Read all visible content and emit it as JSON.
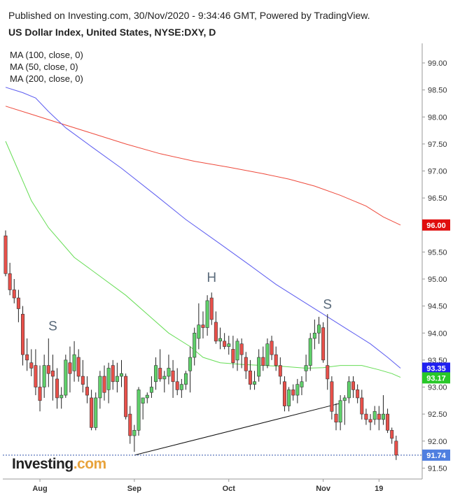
{
  "header": {
    "published": "Published on Investing.com, 30/Nov/2020 - 9:34:46 GMT, Powered by TradingView.",
    "symbol": "US Dollar Index, United States, NYSE:DXY, D"
  },
  "legend": [
    "MA (100, close, 0)",
    "MA (50, close, 0)",
    "MA (200, close, 0)"
  ],
  "logo": "Investing",
  "logo_suffix": ".com",
  "colors": {
    "up": "#26a69a",
    "up_fill": "#4caf50",
    "down": "#e0403c",
    "ma50": "#66dd55",
    "ma100": "#5b5bf0",
    "ma200": "#ee4a3c",
    "tag_red": "#e00d0d",
    "tag_blue": "#2020f0",
    "tag_green": "#28c828",
    "tag_last": "#4f7fe0"
  },
  "chart_data": {
    "type": "candlestick",
    "y_ticks": [
      "91.50",
      "92.00",
      "92.50",
      "93.00",
      "93.50",
      "94.00",
      "94.50",
      "95.00",
      "95.50",
      "96.00",
      "96.50",
      "97.00",
      "97.50",
      "98.00",
      "98.50",
      "99.00"
    ],
    "ylim": [
      91.25,
      99.25
    ],
    "x_labels": [
      {
        "label": "Aug",
        "index": 8
      },
      {
        "label": "Sep",
        "index": 30
      },
      {
        "label": "Oct",
        "index": 52
      },
      {
        "label": "Nov",
        "index": 74
      },
      {
        "label": "19",
        "index": 87
      }
    ],
    "price_tags": [
      {
        "label": "96.00",
        "value": 96.0,
        "color": "tag_red"
      },
      {
        "label": "93.35",
        "value": 93.35,
        "color": "tag_blue"
      },
      {
        "label": "93.17",
        "value": 93.17,
        "color": "tag_green"
      },
      {
        "label": "91.74",
        "value": 91.74,
        "color": "tag_last"
      }
    ],
    "annotations": [
      {
        "text": "S",
        "index": 11,
        "value": 94.05
      },
      {
        "text": "H",
        "index": 48,
        "value": 94.95
      },
      {
        "text": "S",
        "index": 75,
        "value": 94.45
      }
    ],
    "neckline": [
      {
        "index": 30,
        "value": 91.74
      },
      {
        "index": 78,
        "value": 92.7
      }
    ],
    "last_price": 91.74,
    "candles": [
      [
        95.8,
        95.9,
        95.05,
        95.1
      ],
      [
        95.1,
        95.3,
        94.7,
        94.8
      ],
      [
        94.8,
        95.0,
        94.55,
        94.65
      ],
      [
        94.65,
        94.8,
        94.2,
        94.45
      ],
      [
        94.35,
        94.5,
        93.4,
        93.6
      ],
      [
        93.6,
        93.9,
        93.3,
        93.5
      ],
      [
        93.45,
        93.7,
        93.2,
        93.35
      ],
      [
        93.4,
        93.7,
        92.85,
        93.0
      ],
      [
        93.0,
        93.4,
        92.55,
        92.75
      ],
      [
        93.0,
        93.6,
        92.8,
        93.4
      ],
      [
        93.4,
        93.9,
        93.0,
        93.25
      ],
      [
        93.3,
        93.6,
        92.75,
        93.2
      ],
      [
        93.15,
        93.35,
        92.6,
        92.8
      ],
      [
        92.8,
        93.0,
        92.6,
        92.85
      ],
      [
        92.85,
        93.6,
        92.8,
        93.5
      ],
      [
        93.45,
        93.75,
        92.9,
        93.25
      ],
      [
        93.3,
        93.85,
        93.1,
        93.6
      ],
      [
        93.55,
        93.7,
        93.1,
        93.2
      ],
      [
        93.2,
        93.5,
        92.9,
        93.05
      ],
      [
        93.0,
        93.2,
        92.7,
        92.85
      ],
      [
        92.8,
        92.95,
        92.2,
        92.25
      ],
      [
        92.25,
        92.9,
        92.2,
        92.8
      ],
      [
        92.8,
        93.3,
        92.6,
        93.2
      ],
      [
        93.2,
        93.4,
        92.75,
        92.9
      ],
      [
        92.95,
        93.45,
        92.7,
        93.35
      ],
      [
        93.4,
        93.5,
        92.95,
        93.1
      ],
      [
        93.1,
        93.45,
        92.9,
        93.2
      ],
      [
        93.2,
        93.5,
        93.0,
        93.25
      ],
      [
        93.2,
        93.25,
        92.4,
        92.45
      ],
      [
        92.5,
        92.65,
        91.95,
        92.1
      ],
      [
        92.1,
        92.3,
        91.8,
        92.2
      ],
      [
        92.2,
        93.0,
        92.1,
        92.95
      ],
      [
        92.7,
        92.8,
        92.4,
        92.8
      ],
      [
        92.8,
        92.9,
        92.7,
        92.85
      ],
      [
        92.9,
        93.2,
        92.8,
        93.0
      ],
      [
        93.1,
        93.55,
        92.95,
        93.4
      ],
      [
        93.35,
        93.7,
        93.1,
        93.15
      ],
      [
        93.15,
        93.3,
        92.9,
        93.2
      ],
      [
        93.2,
        93.6,
        93.05,
        93.35
      ],
      [
        93.3,
        93.5,
        92.8,
        93.1
      ],
      [
        93.1,
        93.35,
        92.85,
        92.95
      ],
      [
        92.95,
        93.15,
        92.8,
        93.05
      ],
      [
        93.05,
        93.3,
        92.95,
        93.25
      ],
      [
        93.3,
        93.75,
        92.9,
        93.55
      ],
      [
        93.55,
        94.1,
        93.4,
        94.0
      ],
      [
        93.9,
        94.55,
        93.7,
        94.15
      ],
      [
        94.15,
        94.4,
        93.9,
        94.1
      ],
      [
        94.1,
        94.7,
        93.95,
        94.6
      ],
      [
        94.65,
        94.75,
        94.15,
        94.25
      ],
      [
        94.2,
        94.4,
        93.8,
        93.85
      ],
      [
        93.85,
        94.1,
        93.7,
        93.9
      ],
      [
        93.85,
        94.0,
        93.7,
        93.75
      ],
      [
        93.75,
        93.95,
        93.6,
        93.8
      ],
      [
        93.7,
        93.95,
        93.35,
        93.45
      ],
      [
        93.5,
        93.9,
        93.3,
        93.85
      ],
      [
        93.8,
        93.9,
        93.35,
        93.6
      ],
      [
        93.55,
        93.65,
        93.15,
        93.3
      ],
      [
        93.3,
        93.5,
        92.95,
        93.05
      ],
      [
        93.05,
        93.3,
        92.95,
        93.1
      ],
      [
        93.2,
        93.7,
        93.1,
        93.55
      ],
      [
        93.55,
        93.75,
        93.3,
        93.4
      ],
      [
        93.4,
        93.9,
        93.35,
        93.8
      ],
      [
        93.85,
        93.95,
        93.5,
        93.6
      ],
      [
        93.6,
        93.75,
        93.3,
        93.4
      ],
      [
        93.4,
        93.55,
        93.05,
        93.2
      ],
      [
        93.1,
        93.2,
        92.55,
        92.65
      ],
      [
        92.65,
        93.0,
        92.55,
        92.95
      ],
      [
        92.95,
        93.05,
        92.75,
        92.85
      ],
      [
        92.85,
        93.15,
        92.7,
        93.05
      ],
      [
        93.0,
        93.2,
        92.85,
        93.1
      ],
      [
        93.3,
        93.6,
        93.1,
        93.4
      ],
      [
        93.4,
        94.0,
        93.3,
        93.9
      ],
      [
        93.9,
        94.25,
        93.7,
        94.0
      ],
      [
        94.0,
        94.3,
        93.8,
        94.15
      ],
      [
        94.1,
        94.2,
        93.45,
        93.5
      ],
      [
        93.4,
        94.35,
        92.95,
        93.15
      ],
      [
        93.1,
        93.2,
        92.4,
        92.55
      ],
      [
        92.5,
        92.7,
        92.2,
        92.35
      ],
      [
        92.35,
        92.85,
        92.2,
        92.75
      ],
      [
        92.75,
        92.85,
        92.3,
        92.8
      ],
      [
        92.8,
        93.2,
        92.7,
        93.1
      ],
      [
        93.1,
        93.2,
        92.8,
        92.95
      ],
      [
        92.95,
        93.05,
        92.7,
        92.8
      ],
      [
        92.8,
        92.95,
        92.4,
        92.5
      ],
      [
        92.5,
        92.6,
        92.3,
        92.4
      ],
      [
        92.4,
        92.5,
        92.2,
        92.35
      ],
      [
        92.4,
        92.65,
        92.3,
        92.55
      ],
      [
        92.5,
        92.65,
        92.2,
        92.4
      ],
      [
        92.4,
        92.85,
        92.3,
        92.5
      ],
      [
        92.5,
        92.6,
        92.15,
        92.2
      ],
      [
        92.2,
        92.25,
        91.95,
        92.05
      ],
      [
        92.0,
        92.1,
        91.65,
        91.74
      ]
    ],
    "ma50": [
      [
        0,
        97.55
      ],
      [
        3,
        97.0
      ],
      [
        6,
        96.45
      ],
      [
        10,
        95.95
      ],
      [
        16,
        95.4
      ],
      [
        22,
        95.05
      ],
      [
        28,
        94.7
      ],
      [
        33,
        94.35
      ],
      [
        38,
        94.0
      ],
      [
        43,
        93.75
      ],
      [
        46,
        93.55
      ],
      [
        50,
        93.45
      ],
      [
        55,
        93.42
      ],
      [
        60,
        93.4
      ],
      [
        65,
        93.38
      ],
      [
        70,
        93.35
      ],
      [
        74,
        93.36
      ],
      [
        78,
        93.4
      ],
      [
        83,
        93.4
      ],
      [
        87,
        93.32
      ],
      [
        90,
        93.25
      ],
      [
        92,
        93.18
      ]
    ],
    "ma100": [
      [
        0,
        98.55
      ],
      [
        4,
        98.45
      ],
      [
        7,
        98.35
      ],
      [
        10,
        98.1
      ],
      [
        14,
        97.8
      ],
      [
        20,
        97.45
      ],
      [
        27,
        97.05
      ],
      [
        35,
        96.55
      ],
      [
        42,
        96.1
      ],
      [
        50,
        95.65
      ],
      [
        57,
        95.25
      ],
      [
        63,
        94.9
      ],
      [
        69,
        94.6
      ],
      [
        75,
        94.3
      ],
      [
        80,
        94.05
      ],
      [
        85,
        93.8
      ],
      [
        89,
        93.55
      ],
      [
        92,
        93.35
      ]
    ],
    "ma200": [
      [
        0,
        98.2
      ],
      [
        6,
        98.05
      ],
      [
        12,
        97.9
      ],
      [
        20,
        97.7
      ],
      [
        28,
        97.5
      ],
      [
        36,
        97.32
      ],
      [
        44,
        97.18
      ],
      [
        52,
        97.07
      ],
      [
        60,
        96.95
      ],
      [
        66,
        96.85
      ],
      [
        72,
        96.72
      ],
      [
        78,
        96.55
      ],
      [
        84,
        96.35
      ],
      [
        88,
        96.15
      ],
      [
        92,
        96.0
      ]
    ]
  }
}
